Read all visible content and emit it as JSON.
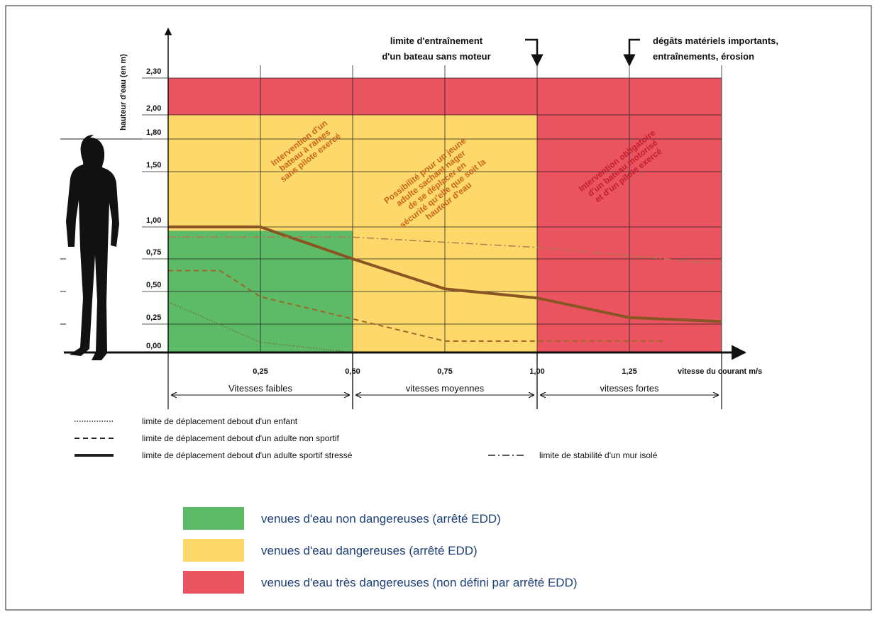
{
  "chart_data": {
    "type": "line",
    "y_label": "hauteur d'eau (en m)",
    "x_label": "vitesse du courant m/s",
    "xlim": [
      0,
      1.55
    ],
    "ylim": [
      0,
      2.3
    ],
    "xticks": [
      {
        "value": 0.25,
        "label": "0,25"
      },
      {
        "value": 0.5,
        "label": "0,50"
      },
      {
        "value": 0.75,
        "label": "0,75"
      },
      {
        "value": 1.0,
        "label": "1,00"
      },
      {
        "value": 1.25,
        "label": "1,25"
      }
    ],
    "yticks": [
      {
        "value": 0,
        "label": "0,00"
      },
      {
        "value": 0.25,
        "label": "0,25"
      },
      {
        "value": 0.5,
        "label": "0,50"
      },
      {
        "value": 0.75,
        "label": "0,75"
      },
      {
        "value": 1.0,
        "label": "1,00"
      },
      {
        "value": 1.5,
        "label": "1,50"
      },
      {
        "value": 1.8,
        "label": "1,80"
      },
      {
        "value": 2.0,
        "label": "2,00"
      },
      {
        "value": 2.3,
        "label": "2,30"
      }
    ],
    "grid": true,
    "zones": [
      {
        "name": "venues d'eau non dangereuses (arrêté EDD)",
        "color": "#5dba66",
        "x": [
          0,
          0.5
        ],
        "y": [
          0,
          0.97
        ]
      },
      {
        "name": "venues d'eau dangereuses (arrêté EDD)",
        "color": "#fdd96b",
        "x": [
          0,
          1.0
        ],
        "y": [
          0,
          2.0
        ]
      },
      {
        "name": "venues d'eau très dangereuses (non défini par arrêté EDD)",
        "color": "#ea5360",
        "x": [
          0,
          1.5
        ],
        "y": [
          0,
          2.3
        ]
      }
    ],
    "zone_labels": [
      {
        "lines": [
          "Intervention d'un",
          "bateau à rames",
          "sans pilote exercé"
        ],
        "color": "#c9651c"
      },
      {
        "lines": [
          "Possibilité pour un jeune",
          "adulte sachant nager",
          "de se déplacer en",
          "sécurité qu'elle que soit la",
          "hauteur d'eau"
        ],
        "color": "#c9651c"
      },
      {
        "lines": [
          "Intervention obligatoire",
          "d'un bateau motorisé",
          "et d'un pilote exercé"
        ],
        "color": "#c41f2a"
      }
    ],
    "annotations": [
      {
        "x": 1.0,
        "lines": [
          "limite d'entraînement",
          "d'un bateau sans moteur"
        ]
      },
      {
        "x": 1.25,
        "lines": [
          "dégâts matériels importants,",
          "entraînements, érosion"
        ]
      }
    ],
    "ranges": [
      {
        "label": "Vitesses faibles",
        "x": [
          0,
          0.5
        ]
      },
      {
        "label": "vitesses moyennes",
        "x": [
          0.5,
          1.0
        ]
      },
      {
        "label": "vitesses fortes",
        "x": [
          1.0,
          1.5
        ]
      }
    ],
    "series": [
      {
        "name": "limite de déplacement debout d'un enfant",
        "color": "#6b7a3a",
        "dash": "dotted",
        "x": [
          0,
          0.25,
          0.5
        ],
        "values": [
          0.42,
          0.09,
          0
        ]
      },
      {
        "name": "limite de déplacement debout d'un adulte non sportif",
        "color": "#a0662a",
        "dash": "dashed",
        "x": [
          0,
          0.14,
          0.25,
          0.5,
          0.75,
          1.34
        ],
        "values": [
          0.66,
          0.66,
          0.46,
          0.29,
          0.1,
          0.1
        ]
      },
      {
        "name": "limite de déplacement debout d'un adulte sportif stressé",
        "color": "#8a5522",
        "dash": "solid",
        "x": [
          0,
          0.25,
          0.5,
          0.75,
          1.0,
          1.25,
          1.5
        ],
        "values": [
          1.0,
          1.0,
          0.75,
          0.52,
          0.45,
          0.3,
          0.27
        ]
      },
      {
        "name": "limite de stabilité d'un mur isolé",
        "color": "#b07a4a",
        "dash": "dashdot",
        "x": [
          0,
          0.5,
          1.0,
          1.5
        ],
        "values": [
          0.92,
          0.92,
          0.84,
          0.71
        ]
      }
    ]
  }
}
